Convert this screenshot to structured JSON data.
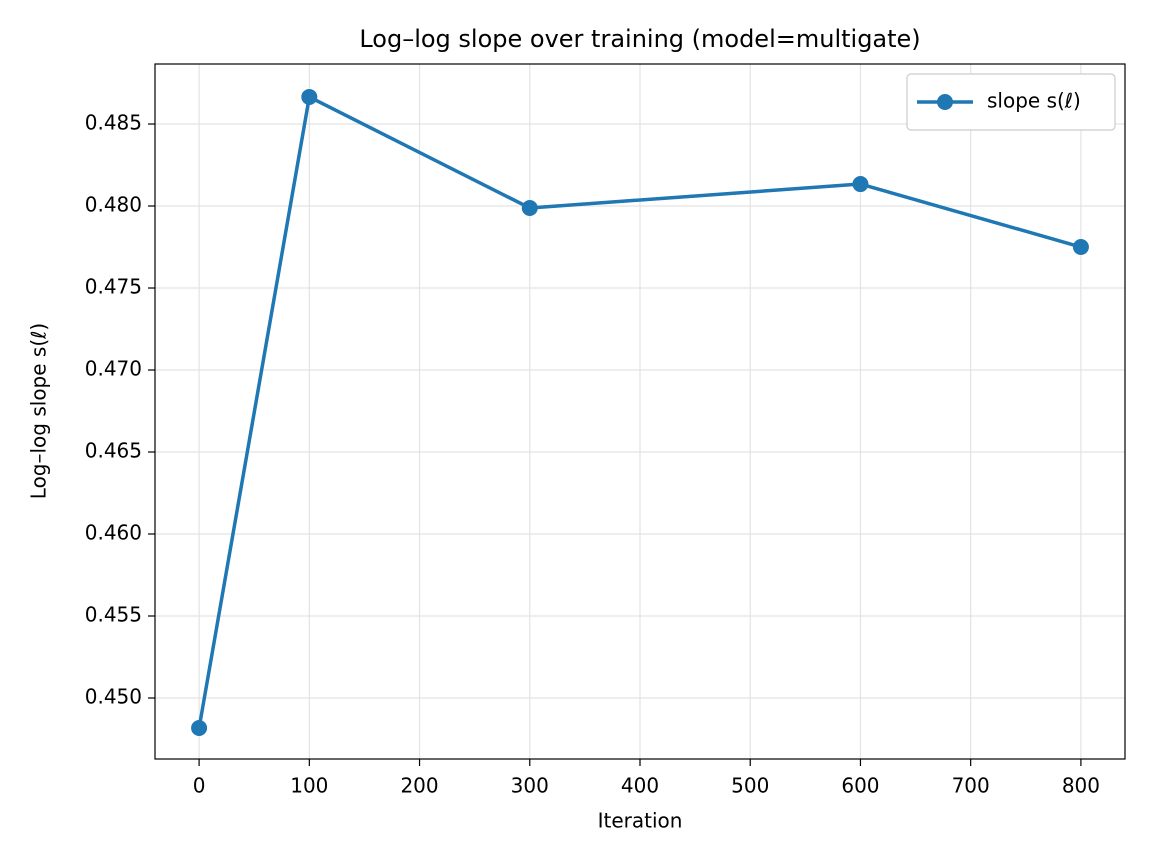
{
  "chart_data": {
    "type": "line",
    "title": "Log–log slope over training (model=multigate)",
    "xlabel": "Iteration",
    "ylabel": "Log–log slope s(ℓ)",
    "x": [
      0,
      100,
      300,
      600,
      800
    ],
    "series": [
      {
        "name": "slope s(ℓ)",
        "color": "#1f77b4",
        "values": [
          0.44817,
          0.48665,
          0.47988,
          0.48134,
          0.4775
        ]
      }
    ],
    "xlim": [
      -40,
      840
    ],
    "ylim": [
      0.44628,
      0.48866
    ],
    "xticks": [
      0,
      100,
      200,
      300,
      400,
      500,
      600,
      700,
      800
    ],
    "yticks": [
      {
        "value": 0.45,
        "label": "0.450"
      },
      {
        "value": 0.455,
        "label": "0.455"
      },
      {
        "value": 0.46,
        "label": "0.460"
      },
      {
        "value": 0.465,
        "label": "0.465"
      },
      {
        "value": 0.47,
        "label": "0.470"
      },
      {
        "value": 0.475,
        "label": "0.475"
      },
      {
        "value": 0.48,
        "label": "0.480"
      },
      {
        "value": 0.485,
        "label": "0.485"
      }
    ],
    "grid": true,
    "legend": "upper right"
  }
}
